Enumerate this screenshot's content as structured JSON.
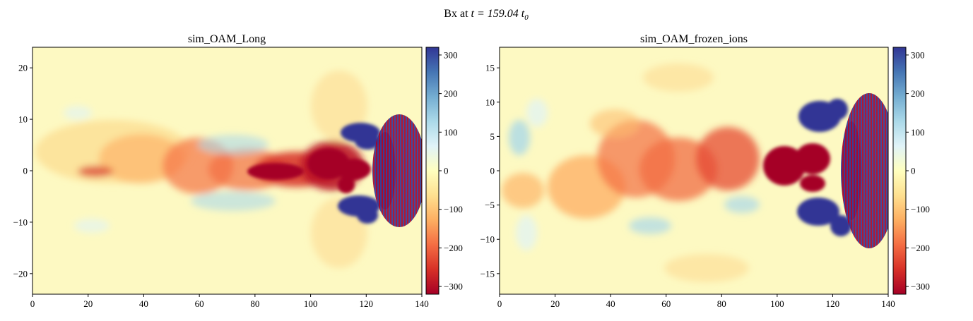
{
  "figure": {
    "title_prefix": "Bx at ",
    "title_math": "t = 159.04 t",
    "title_subscript": "0"
  },
  "chart_data": [
    {
      "type": "heatmap",
      "title": "sim_OAM_Long",
      "xlim": [
        0,
        140
      ],
      "ylim": [
        -24,
        24
      ],
      "xticks": [
        0,
        20,
        40,
        60,
        80,
        100,
        120,
        140
      ],
      "xtick_labels": [
        "0",
        "20",
        "40",
        "60",
        "80",
        "100",
        "120",
        "140"
      ],
      "yticks": [
        -20,
        -10,
        0,
        10,
        20
      ],
      "ytick_labels": [
        "−20",
        "−10",
        "0",
        "10",
        "20"
      ],
      "colorbar": {
        "range": [
          -320,
          320
        ],
        "ticks": [
          -300,
          -200,
          -100,
          0,
          100,
          200,
          300
        ],
        "tick_labels": [
          "−300",
          "−200",
          "−100",
          "0",
          "100",
          "200",
          "300"
        ],
        "colormap": "RdYlBu"
      }
    },
    {
      "type": "heatmap",
      "title": "sim_OAM_frozen_ions",
      "xlim": [
        0,
        140
      ],
      "ylim": [
        -18,
        18
      ],
      "xticks": [
        0,
        20,
        40,
        60,
        80,
        100,
        120,
        140
      ],
      "xtick_labels": [
        "0",
        "20",
        "40",
        "60",
        "80",
        "100",
        "120",
        "140"
      ],
      "yticks": [
        -15,
        -10,
        -5,
        0,
        5,
        10,
        15
      ],
      "ytick_labels": [
        "−15",
        "−10",
        "−5",
        "0",
        "5",
        "10",
        "15"
      ],
      "colorbar": {
        "range": [
          -320,
          320
        ],
        "ticks": [
          -300,
          -200,
          -100,
          0,
          100,
          200,
          300
        ],
        "tick_labels": [
          "−300",
          "−200",
          "−100",
          "0",
          "100",
          "200",
          "300"
        ],
        "colormap": "RdYlBu"
      }
    }
  ]
}
